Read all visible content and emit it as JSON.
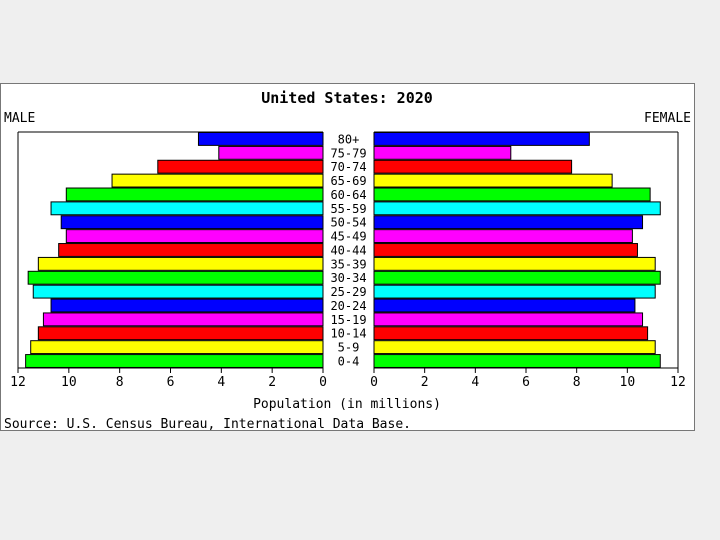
{
  "chart_data": {
    "type": "bar",
    "title": "United States: 2020",
    "left_label": "MALE",
    "right_label": "FEMALE",
    "xlabel": "Population (in millions)",
    "source": "Source: U.S. Census Bureau, International Data Base.",
    "xlim": [
      0,
      12
    ],
    "x_ticks": [
      "12",
      "10",
      "8",
      "6",
      "4",
      "2",
      "0"
    ],
    "x_ticks_right": [
      "0",
      "2",
      "4",
      "6",
      "8",
      "10",
      "12"
    ],
    "categories": [
      "80+",
      "75-79",
      "70-74",
      "65-69",
      "60-64",
      "55-59",
      "50-54",
      "45-49",
      "40-44",
      "35-39",
      "30-34",
      "25-29",
      "20-24",
      "15-19",
      "10-14",
      "5-9",
      "0-4"
    ],
    "colors": [
      "#0000ff",
      "#ff00ff",
      "#ff0000",
      "#ffff00",
      "#00ff00",
      "#00ffff",
      "#0000ff",
      "#ff00ff",
      "#ff0000",
      "#ffff00",
      "#00ff00",
      "#00ffff",
      "#0000ff",
      "#ff00ff",
      "#ff0000",
      "#ffff00",
      "#00ff00"
    ],
    "series": [
      {
        "name": "MALE",
        "values": [
          4.9,
          4.1,
          6.5,
          8.3,
          10.1,
          10.7,
          10.3,
          10.1,
          10.4,
          11.2,
          11.6,
          11.4,
          10.7,
          11.0,
          11.2,
          11.5,
          11.7
        ]
      },
      {
        "name": "FEMALE",
        "values": [
          8.5,
          5.4,
          7.8,
          9.4,
          10.9,
          11.3,
          10.6,
          10.2,
          10.4,
          11.1,
          11.3,
          11.1,
          10.3,
          10.6,
          10.8,
          11.1,
          11.3
        ]
      }
    ]
  }
}
